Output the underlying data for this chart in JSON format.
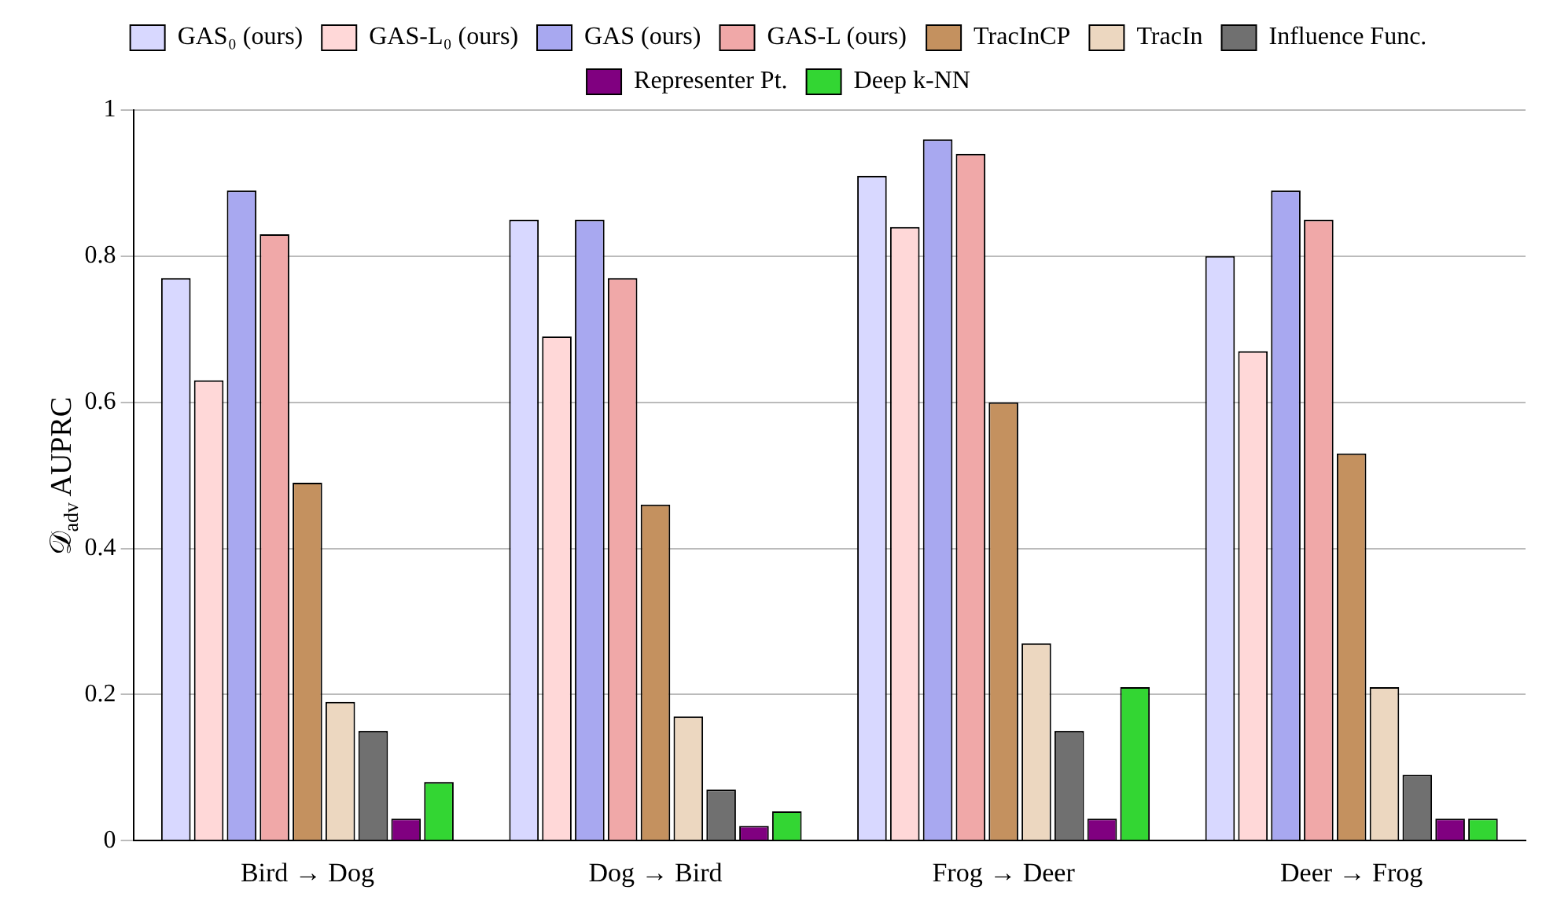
{
  "chart_data": {
    "type": "bar",
    "ylabel": "𝒟$_{adv}$ AUPRC",
    "categories": [
      "Bird → Dog",
      "Dog → Bird",
      "Frog → Deer",
      "Deer → Frog"
    ],
    "series": [
      {
        "name": "GAS₀ (ours)",
        "color": "#d8d8ff",
        "values": [
          0.77,
          0.85,
          0.91,
          0.8
        ]
      },
      {
        "name": "GAS-L₀ (ours)",
        "color": "#ffd8d8",
        "values": [
          0.63,
          0.69,
          0.84,
          0.67
        ]
      },
      {
        "name": "GAS (ours)",
        "color": "#a8a8f0",
        "values": [
          0.89,
          0.85,
          0.96,
          0.89
        ]
      },
      {
        "name": "GAS-L (ours)",
        "color": "#f0a8a8",
        "values": [
          0.83,
          0.77,
          0.94,
          0.85
        ]
      },
      {
        "name": "TracInCP",
        "color": "#c4915f",
        "values": [
          0.49,
          0.46,
          0.6,
          0.53
        ]
      },
      {
        "name": "TracIn",
        "color": "#ecd7c0",
        "values": [
          0.19,
          0.17,
          0.27,
          0.21
        ]
      },
      {
        "name": "Influence Func.",
        "color": "#707070",
        "values": [
          0.15,
          0.07,
          0.15,
          0.09
        ]
      },
      {
        "name": "Representer Pt.",
        "color": "#800080",
        "values": [
          0.03,
          0.02,
          0.03,
          0.03
        ]
      },
      {
        "name": "Deep k-NN",
        "color": "#33d633",
        "values": [
          0.08,
          0.04,
          0.21,
          0.03
        ]
      }
    ],
    "ylim": [
      0,
      1
    ],
    "yticks": [
      0,
      0.2,
      0.4,
      0.6,
      0.8,
      1
    ],
    "grid": "y",
    "legend": "top"
  }
}
